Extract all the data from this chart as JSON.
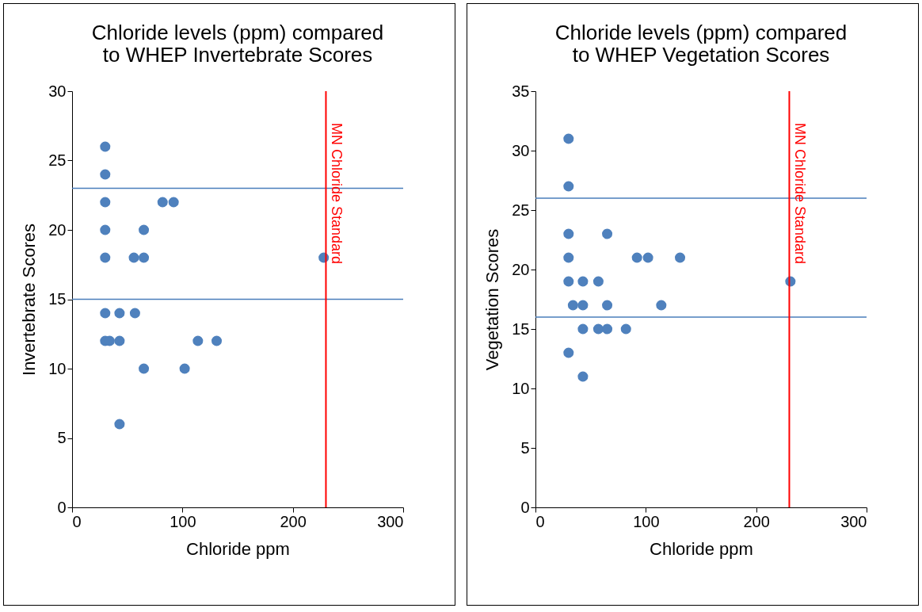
{
  "chart_data": [
    {
      "type": "scatter",
      "title": "Chloride levels (ppm) compared\nto WHEP Invertebrate Scores",
      "xlabel": "Chloride ppm",
      "ylabel": "Invertebrate Scores",
      "marker": "circle",
      "grid": false,
      "series": [
        {
          "color": "#4f81bd",
          "x": [
            30,
            30,
            30,
            82,
            92,
            30,
            65,
            30,
            56,
            65,
            228,
            30,
            43,
            57,
            30,
            34,
            43,
            114,
            131,
            65,
            102,
            43
          ],
          "values": [
            26,
            24,
            22,
            22,
            22,
            20,
            20,
            18,
            18,
            18,
            18,
            14,
            14,
            14,
            12,
            12,
            12,
            12,
            12,
            10,
            10,
            6
          ]
        }
      ],
      "xlim": [
        0,
        300
      ],
      "xticks": [
        0,
        100,
        200,
        300
      ],
      "ylim": [
        0,
        30
      ],
      "yticks": [
        0,
        5,
        10,
        15,
        20,
        25,
        30
      ],
      "ref_lines": [
        {
          "axis": "y",
          "value": 23,
          "color": "#4a7ebb"
        },
        {
          "axis": "y",
          "value": 15,
          "color": "#4a7ebb"
        },
        {
          "axis": "x",
          "value": 230,
          "label": "MN Chloride Standard",
          "color": "#ff0000"
        }
      ]
    },
    {
      "type": "scatter",
      "title": "Chloride levels (ppm) compared\nto WHEP Vegetation Scores",
      "xlabel": "Chloride ppm",
      "ylabel": "Vegetation Scores",
      "marker": "circle",
      "grid": false,
      "series": [
        {
          "color": "#4f81bd",
          "x": [
            30,
            30,
            30,
            65,
            30,
            92,
            102,
            131,
            30,
            43,
            57,
            231,
            34,
            43,
            65,
            114,
            43,
            57,
            65,
            82,
            30,
            43
          ],
          "values": [
            31,
            27,
            23,
            23,
            21,
            21,
            21,
            21,
            19,
            19,
            19,
            19,
            17,
            17,
            17,
            17,
            15,
            15,
            15,
            15,
            13,
            11
          ]
        }
      ],
      "xlim": [
        0,
        300
      ],
      "xticks": [
        0,
        100,
        200,
        300
      ],
      "ylim": [
        0,
        35
      ],
      "yticks": [
        0,
        5,
        10,
        15,
        20,
        25,
        30,
        35
      ],
      "ref_lines": [
        {
          "axis": "y",
          "value": 26,
          "color": "#4a7ebb"
        },
        {
          "axis": "y",
          "value": 16,
          "color": "#4a7ebb"
        },
        {
          "axis": "x",
          "value": 230,
          "label": "MN Chloride Standard",
          "color": "#ff0000"
        }
      ]
    }
  ]
}
